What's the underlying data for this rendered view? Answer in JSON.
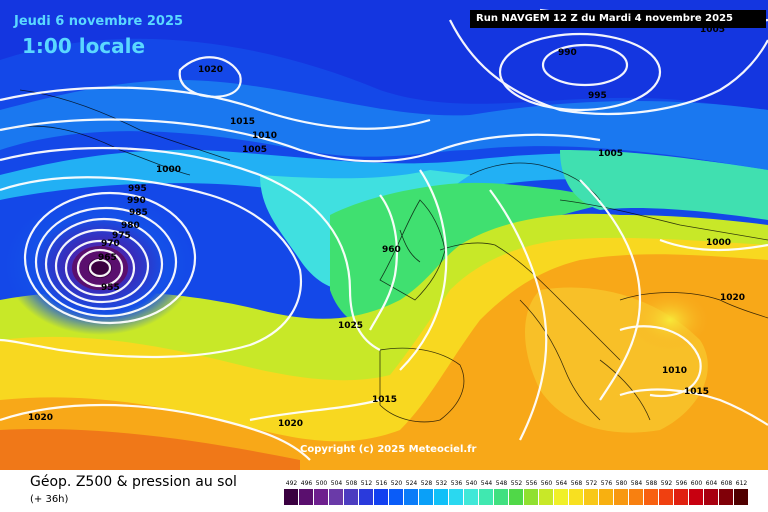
{
  "header": {
    "date_label": "Jeudi 6 novembre 2025",
    "local_time": "1:00 locale",
    "run_info": "Run NAVGEM 12 Z du Mardi 4 novembre 2025"
  },
  "isobar_labels": [
    "1020",
    "990",
    "1005",
    "995",
    "1015",
    "1010",
    "1005",
    "1000",
    "1005",
    "995",
    "990",
    "985",
    "980",
    "975",
    "970",
    "965",
    "955",
    "960",
    "1000",
    "1025",
    "1010",
    "1020",
    "1015",
    "1020",
    "1015",
    "1020"
  ],
  "copyright": "Copyright (c) 2025 Meteociel.fr",
  "legend": {
    "title": "Géop. Z500 & pression au sol",
    "subtitle": "(+ 36h)",
    "values": [
      "492",
      "496",
      "500",
      "504",
      "508",
      "512",
      "516",
      "520",
      "524",
      "528",
      "532",
      "536",
      "540",
      "544",
      "548",
      "552",
      "556",
      "560",
      "564",
      "568",
      "572",
      "576",
      "580",
      "584",
      "588",
      "592",
      "596",
      "600",
      "604",
      "608",
      "612"
    ],
    "colors": [
      "#3a0040",
      "#5a0f6e",
      "#6e1f8e",
      "#6a3aa8",
      "#4c3cc0",
      "#2a3adc",
      "#1240f0",
      "#0a5cf8",
      "#0a7cf8",
      "#0aa0f8",
      "#10c0f8",
      "#2ad8f0",
      "#40e8d8",
      "#40e8b0",
      "#40e080",
      "#50d848",
      "#90e030",
      "#c8e828",
      "#f0f028",
      "#f8e020",
      "#f8c818",
      "#f8b010",
      "#f89810",
      "#f88010",
      "#f86010",
      "#f04010",
      "#e02010",
      "#c80010",
      "#a80010",
      "#800008",
      "#500000"
    ]
  }
}
